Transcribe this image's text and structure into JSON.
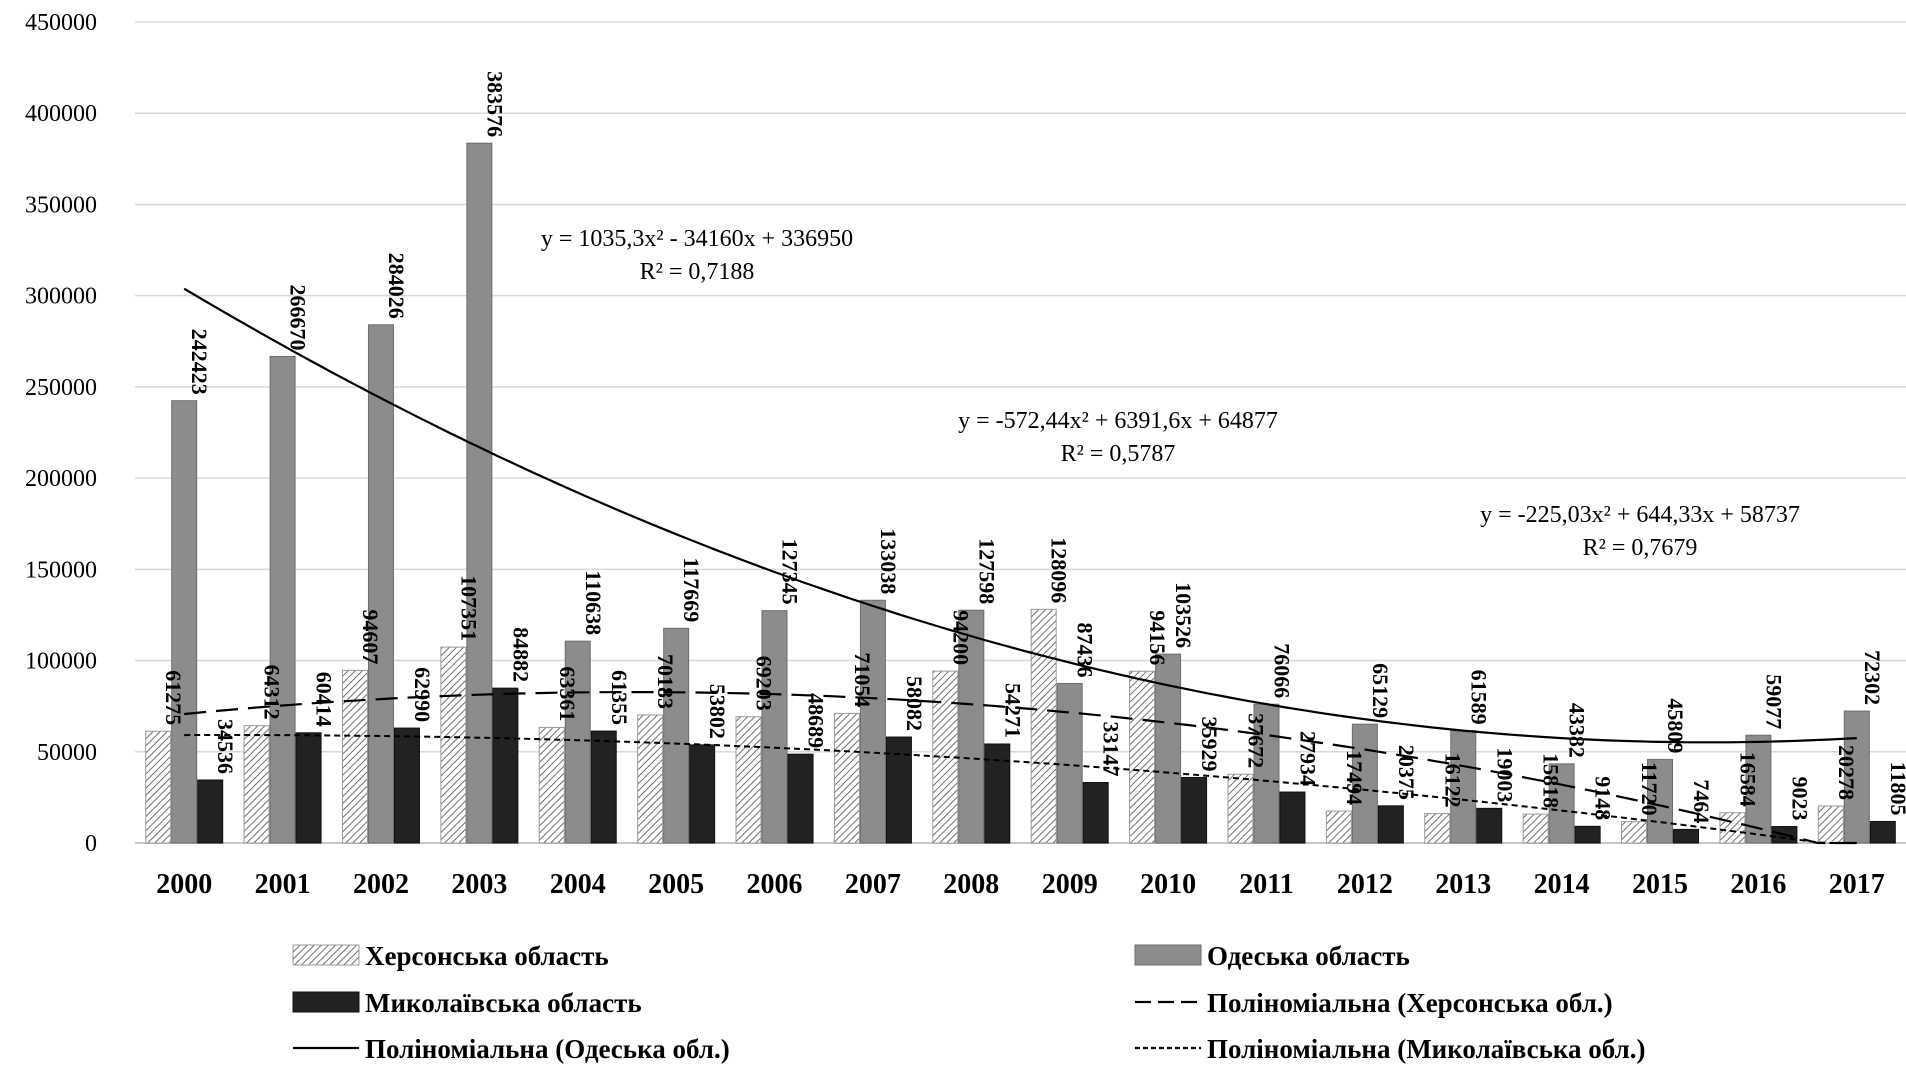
{
  "chart_data": {
    "type": "bar",
    "title": "",
    "xlabel": "",
    "ylabel": "",
    "ylim": [
      0,
      450000
    ],
    "yticks": [
      0,
      50000,
      100000,
      150000,
      200000,
      250000,
      300000,
      350000,
      400000,
      450000
    ],
    "ytick_labels": [
      "0",
      "50000",
      "100000",
      "150000",
      "200000",
      "250000",
      "300000",
      "350000",
      "400000",
      "450000"
    ],
    "grid": true,
    "legend_position": "bottom",
    "categories": [
      "2000",
      "2001",
      "2002",
      "2003",
      "2004",
      "2005",
      "2006",
      "2007",
      "2008",
      "2009",
      "2010",
      "2011",
      "2012",
      "2013",
      "2014",
      "2015",
      "2016",
      "2017"
    ],
    "series": [
      {
        "name": "Херсонська область",
        "style": "hatched",
        "values": [
          61275,
          64312,
          94607,
          107351,
          63361,
          70183,
          69203,
          71054,
          94200,
          128096,
          94156,
          37672,
          17494,
          16122,
          15818,
          11720,
          16584,
          20278
        ]
      },
      {
        "name": "Одеська область",
        "style": "gray",
        "values": [
          242423,
          266670,
          284026,
          383576,
          110638,
          117669,
          127345,
          133038,
          127598,
          87436,
          103526,
          76066,
          65129,
          61589,
          43382,
          45809,
          59077,
          72302
        ]
      },
      {
        "name": "Миколаївська область",
        "style": "black",
        "values": [
          34536,
          60414,
          62990,
          84882,
          61355,
          53802,
          48689,
          58082,
          54271,
          33147,
          35929,
          27934,
          20375,
          19003,
          9148,
          7464,
          9023,
          11805
        ]
      }
    ],
    "trendlines": [
      {
        "name": "Поліноміальна (Херсонська обл.)",
        "style": "dashed",
        "coefficients": [
          -572.44,
          6391.6,
          64877
        ],
        "equation": "y = -572,44x² + 6391,6x + 64877",
        "r2": "R² = 0,5787"
      },
      {
        "name": "Поліноміальна (Одеська обл.)",
        "style": "solid",
        "coefficients": [
          1035.3,
          -34160,
          336950
        ],
        "equation": "y = 1035,3x² - 34160x + 336950",
        "r2": "R² = 0,7188"
      },
      {
        "name": "Поліноміальна (Миколаївська обл.)",
        "style": "dotted",
        "coefficients": [
          -225.03,
          644.33,
          58737
        ],
        "equation": "y = -225,03x² + 644,33x + 58737",
        "r2": "R² = 0,7679"
      }
    ],
    "legend": [
      {
        "label": "Херсонська область",
        "kind": "hatched"
      },
      {
        "label": "Одеська область",
        "kind": "gray"
      },
      {
        "label": "Миколаївська область",
        "kind": "black"
      },
      {
        "label": "Поліноміальна (Херсонська обл.)",
        "kind": "dashed"
      },
      {
        "label": "Поліноміальна (Одеська обл.)",
        "kind": "solid"
      },
      {
        "label": "Поліноміальна (Миколаївська обл.)",
        "kind": "dotted"
      }
    ],
    "colors": {
      "gray": "#8c8c8c",
      "black": "#222222",
      "grid": "#d9d9d9",
      "hatch": "#777777"
    }
  }
}
